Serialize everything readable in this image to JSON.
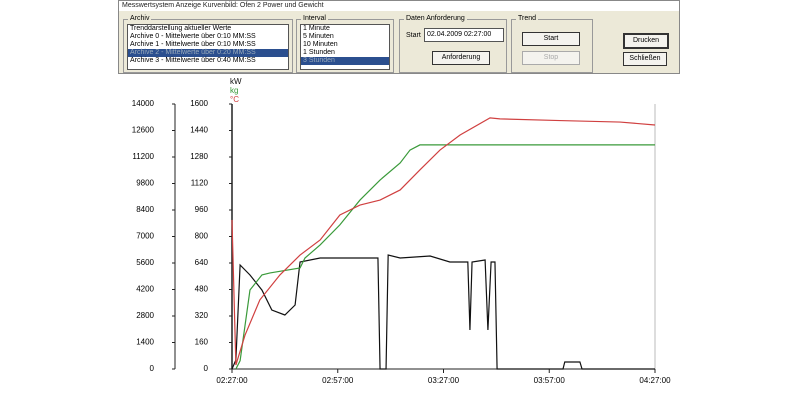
{
  "window": {
    "title": "Messwertsystem Anzeige Kurvenbild: Ofen 2 Power und Gewicht",
    "archiv": {
      "label": "Archiv",
      "items": [
        "Trenddarstellung aktueller Werte",
        "Archive 0 - Mittelwerte über 0:10 MM:SS",
        "Archive 1 - Mittelwerte über 0:10 MM:SS",
        "Archive 2 - Mittelwerte über 0:20 MM:SS",
        "Archive 3 - Mittelwerte über 0:40 MM:SS"
      ],
      "selected": 3
    },
    "interval": {
      "label": "Interval",
      "items": [
        "1 Minute",
        "5 Minuten",
        "10 Minuten",
        "1 Stunden",
        "3 Stunden"
      ],
      "selected": 4
    },
    "daten": {
      "label": "Daten Anforderung",
      "start_label": "Start",
      "start_value": "02.04.2009 02:27:00",
      "button": "Anforderung"
    },
    "trend": {
      "label": "Trend",
      "start": "Start",
      "stop": "Stop"
    },
    "drucken": "Drucken",
    "schliessen": "Schließen"
  },
  "chart_data": {
    "type": "line",
    "xlim": [
      0,
      120
    ],
    "xticks": [
      {
        "value": 0,
        "label": "02:27:00"
      },
      {
        "value": 30,
        "label": "02:57:00"
      },
      {
        "value": 60,
        "label": "03:27:00"
      },
      {
        "value": 90,
        "label": "03:57:00"
      },
      {
        "value": 120,
        "label": "04:27:00"
      }
    ],
    "ylim": [
      0,
      14000
    ],
    "yticks": [
      0,
      1400,
      2800,
      4200,
      5600,
      7000,
      8400,
      9800,
      11200,
      12600,
      14000
    ],
    "y2lim": [
      0,
      1600
    ],
    "y2ticks": [
      0,
      160,
      320,
      480,
      640,
      800,
      960,
      1120,
      1280,
      1440,
      1600
    ],
    "series": [
      {
        "name": "kW",
        "color": "#111111",
        "x": [
          0,
          1.1,
          2.3,
          5.1,
          8.5,
          11.3,
          15,
          17.9,
          19.3,
          25,
          41.4,
          42,
          43.7,
          44.3,
          47.7,
          56.2,
          61.8,
          66.9,
          67.5,
          68.1,
          71.8,
          72.6,
          73.5,
          74.6,
          75.2,
          93.9,
          94.4,
          98.7,
          99.3,
          120
        ],
        "values": [
          0,
          475,
          5494,
          4966,
          4170,
          3117,
          2853,
          3381,
          5653,
          5864,
          5864,
          0,
          0,
          6023,
          5864,
          5970,
          5653,
          5653,
          2060,
          5653,
          5759,
          2060,
          5653,
          5653,
          0,
          0,
          370,
          370,
          0,
          0
        ]
      },
      {
        "name": "kg",
        "color": "#3a9a3a",
        "axis": "y2",
        "x": [
          1.1,
          2.3,
          5.1,
          8.5,
          10.8,
          19.3,
          20.7,
          25,
          30.6,
          36.3,
          42,
          47.7,
          50.5,
          53.3,
          67.5,
          120
        ],
        "values": [
          0,
          50,
          477,
          568,
          580,
          610,
          670,
          749,
          870,
          1020,
          1141,
          1244,
          1322,
          1353,
          1353,
          1353
        ]
      },
      {
        "name": "°C",
        "color": "#d04040",
        "axis": "y2",
        "x": [
          0,
          1.1,
          3.7,
          7.9,
          13.6,
          19.3,
          25,
          30.6,
          36.3,
          42,
          47.7,
          53.3,
          59,
          64.7,
          73.2,
          76,
          93,
          110.1,
          120
        ],
        "values": [
          900,
          24,
          205,
          417,
          568,
          688,
          779,
          930,
          990,
          1020,
          1081,
          1202,
          1322,
          1413,
          1516,
          1510,
          1500,
          1491,
          1473
        ]
      }
    ]
  }
}
